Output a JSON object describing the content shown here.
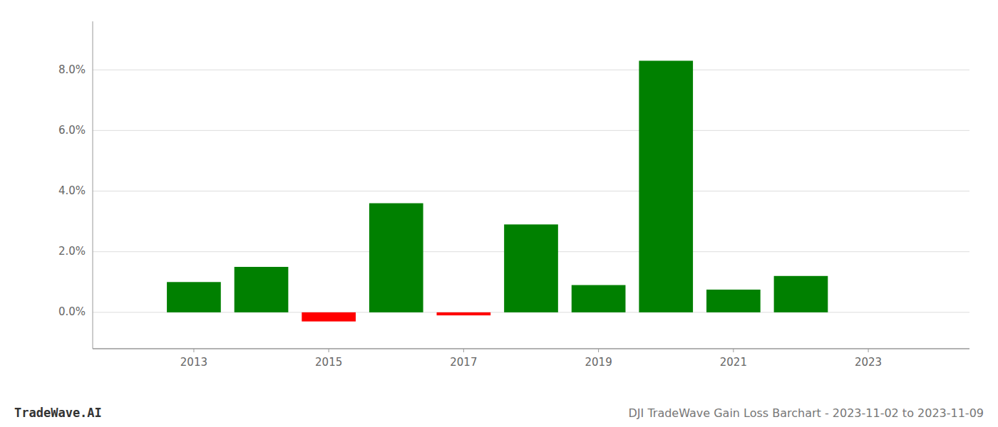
{
  "chart_data": {
    "type": "bar",
    "title": "DJI TradeWave Gain Loss Barchart - 2023-11-02 to 2023-11-09",
    "annotations": [
      "TradeWave.AI"
    ],
    "x": [
      2013,
      2014,
      2015,
      2016,
      2017,
      2018,
      2019,
      2020,
      2021,
      2022
    ],
    "values": [
      0.01,
      0.015,
      -0.003,
      0.036,
      -0.001,
      0.029,
      0.009,
      0.083,
      0.0075,
      0.012
    ],
    "colors": [
      "#008000",
      "#008000",
      "#ff0000",
      "#008000",
      "#ff0000",
      "#008000",
      "#008000",
      "#008000",
      "#008000",
      "#008000"
    ],
    "xlim": [
      2011.5,
      2024.5
    ],
    "xticks": [
      2013,
      2015,
      2017,
      2019,
      2021,
      2023
    ],
    "ylim": [
      -0.012,
      0.096
    ],
    "yticks": [
      {
        "value": 0.0,
        "label": "0.0%"
      },
      {
        "value": 0.02,
        "label": "2.0%"
      },
      {
        "value": 0.04,
        "label": "4.0%"
      },
      {
        "value": 0.06,
        "label": "6.0%"
      },
      {
        "value": 0.08,
        "label": "8.0%"
      }
    ],
    "grid": true
  }
}
